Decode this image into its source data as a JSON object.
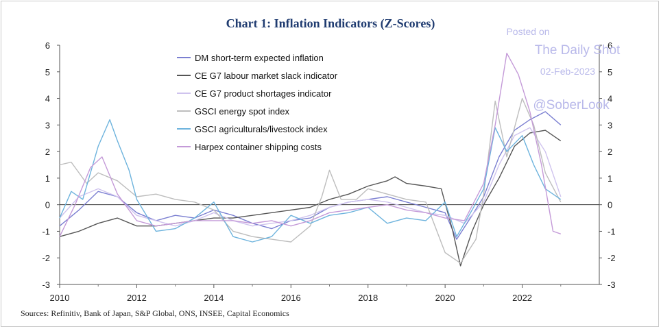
{
  "chart_data": {
    "type": "line",
    "title": "Chart 1: Inflation Indicators (Z-Scores)",
    "source": "Sources: Refinitiv, Bank of Japan, S&P Global, ONS, INSEE, Capital Economics",
    "xlim": [
      2010,
      2024
    ],
    "ylim": [
      -3,
      6
    ],
    "x_ticks": [
      "2010",
      "2012",
      "2014",
      "2016",
      "2018",
      "2020",
      "2022"
    ],
    "x_tick_values": [
      2010,
      2012,
      2014,
      2016,
      2018,
      2020,
      2022
    ],
    "y_ticks": [
      "-3",
      "-2",
      "-1",
      "0",
      "1",
      "2",
      "3",
      "4",
      "5",
      "6"
    ],
    "y_tick_values": [
      -3,
      -2,
      -1,
      0,
      1,
      2,
      3,
      4,
      5,
      6
    ],
    "legend_position": "top-left",
    "series": [
      {
        "name": "DM short-term expected inflation",
        "color": "#7b7fd1",
        "points": [
          [
            2010,
            -0.8
          ],
          [
            2010.5,
            -0.2
          ],
          [
            2011,
            0.5
          ],
          [
            2011.5,
            0.3
          ],
          [
            2012,
            -0.3
          ],
          [
            2012.5,
            -0.6
          ],
          [
            2013,
            -0.4
          ],
          [
            2013.5,
            -0.5
          ],
          [
            2014,
            -0.2
          ],
          [
            2014.5,
            -0.4
          ],
          [
            2015,
            -0.7
          ],
          [
            2015.5,
            -0.9
          ],
          [
            2016,
            -0.6
          ],
          [
            2016.5,
            -0.5
          ],
          [
            2017,
            -0.1
          ],
          [
            2017.5,
            0.1
          ],
          [
            2018,
            0.2
          ],
          [
            2018.5,
            0.3
          ],
          [
            2019,
            0.1
          ],
          [
            2019.5,
            -0.1
          ],
          [
            2020,
            -0.3
          ],
          [
            2020.3,
            -1.3
          ],
          [
            2020.7,
            -0.4
          ],
          [
            2021,
            0.3
          ],
          [
            2021.4,
            1.8
          ],
          [
            2021.8,
            2.8
          ],
          [
            2022.2,
            3.2
          ],
          [
            2022.6,
            3.5
          ],
          [
            2023,
            3.0
          ]
        ]
      },
      {
        "name": "CE G7 labour market slack indicator",
        "color": "#555555",
        "points": [
          [
            2010,
            -1.2
          ],
          [
            2010.5,
            -1.0
          ],
          [
            2011,
            -0.7
          ],
          [
            2011.5,
            -0.5
          ],
          [
            2012,
            -0.8
          ],
          [
            2012.5,
            -0.8
          ],
          [
            2013,
            -0.7
          ],
          [
            2013.5,
            -0.6
          ],
          [
            2014,
            -0.5
          ],
          [
            2014.5,
            -0.5
          ],
          [
            2015,
            -0.4
          ],
          [
            2015.5,
            -0.3
          ],
          [
            2016,
            -0.2
          ],
          [
            2016.5,
            -0.1
          ],
          [
            2017,
            0.2
          ],
          [
            2017.5,
            0.4
          ],
          [
            2018,
            0.7
          ],
          [
            2018.5,
            0.9
          ],
          [
            2018.7,
            1.05
          ],
          [
            2019,
            0.8
          ],
          [
            2019.5,
            0.7
          ],
          [
            2019.9,
            0.6
          ],
          [
            2020.2,
            -1.0
          ],
          [
            2020.4,
            -2.3
          ],
          [
            2020.7,
            -1.0
          ],
          [
            2021,
            0.0
          ],
          [
            2021.4,
            1.0
          ],
          [
            2021.8,
            2.2
          ],
          [
            2022.2,
            2.7
          ],
          [
            2022.6,
            2.8
          ],
          [
            2023,
            2.4
          ]
        ]
      },
      {
        "name": "CE G7 product shortages indicator",
        "color": "#cfc3ee",
        "points": [
          [
            2010,
            -0.5
          ],
          [
            2010.5,
            0.3
          ],
          [
            2011,
            0.6
          ],
          [
            2011.5,
            0.3
          ],
          [
            2012,
            -0.4
          ],
          [
            2012.5,
            -0.6
          ],
          [
            2013,
            -0.8
          ],
          [
            2013.5,
            -0.6
          ],
          [
            2014,
            -0.3
          ],
          [
            2014.5,
            -0.6
          ],
          [
            2015,
            -0.8
          ],
          [
            2015.5,
            -0.7
          ],
          [
            2016,
            -0.6
          ],
          [
            2016.5,
            -0.4
          ],
          [
            2017,
            -0.1
          ],
          [
            2017.5,
            0.1
          ],
          [
            2018,
            0.2
          ],
          [
            2018.5,
            0.1
          ],
          [
            2019,
            -0.1
          ],
          [
            2019.5,
            -0.3
          ],
          [
            2020,
            -0.4
          ],
          [
            2020.5,
            -0.7
          ],
          [
            2021,
            0.1
          ],
          [
            2021.4,
            1.5
          ],
          [
            2021.8,
            2.6
          ],
          [
            2022.2,
            2.9
          ],
          [
            2022.6,
            2.0
          ],
          [
            2023,
            0.3
          ]
        ]
      },
      {
        "name": "GSCI energy spot index",
        "color": "#bdbdbd",
        "points": [
          [
            2010,
            1.5
          ],
          [
            2010.3,
            1.6
          ],
          [
            2010.7,
            0.8
          ],
          [
            2011,
            1.2
          ],
          [
            2011.5,
            0.9
          ],
          [
            2012,
            0.3
          ],
          [
            2012.5,
            0.4
          ],
          [
            2013,
            0.2
          ],
          [
            2013.5,
            0.1
          ],
          [
            2014,
            -0.2
          ],
          [
            2014.5,
            -1.0
          ],
          [
            2015,
            -1.2
          ],
          [
            2015.5,
            -1.3
          ],
          [
            2016,
            -1.4
          ],
          [
            2016.5,
            -0.8
          ],
          [
            2016.8,
            0.3
          ],
          [
            2017,
            1.3
          ],
          [
            2017.3,
            0.2
          ],
          [
            2017.7,
            0.2
          ],
          [
            2018,
            0.6
          ],
          [
            2018.5,
            0.4
          ],
          [
            2019,
            0.2
          ],
          [
            2019.5,
            0.1
          ],
          [
            2020,
            -1.8
          ],
          [
            2020.4,
            -2.2
          ],
          [
            2020.8,
            -1.3
          ],
          [
            2021,
            0.4
          ],
          [
            2021.3,
            3.9
          ],
          [
            2021.6,
            1.8
          ],
          [
            2022,
            4.0
          ],
          [
            2022.3,
            3.0
          ],
          [
            2022.6,
            1.2
          ],
          [
            2023,
            0.1
          ]
        ]
      },
      {
        "name": "GSCI agriculturals/livestock index",
        "color": "#6db3dd",
        "points": [
          [
            2010,
            -0.5
          ],
          [
            2010.3,
            0.5
          ],
          [
            2010.6,
            0.2
          ],
          [
            2011,
            2.2
          ],
          [
            2011.3,
            3.2
          ],
          [
            2011.5,
            2.4
          ],
          [
            2011.8,
            1.3
          ],
          [
            2012,
            0.2
          ],
          [
            2012.5,
            -1.0
          ],
          [
            2013,
            -0.9
          ],
          [
            2013.5,
            -0.5
          ],
          [
            2014,
            0.1
          ],
          [
            2014.5,
            -1.2
          ],
          [
            2015,
            -1.4
          ],
          [
            2015.5,
            -1.2
          ],
          [
            2016,
            -0.4
          ],
          [
            2016.5,
            -0.7
          ],
          [
            2017,
            -0.4
          ],
          [
            2017.5,
            -0.3
          ],
          [
            2018,
            -0.1
          ],
          [
            2018.5,
            -0.7
          ],
          [
            2019,
            -0.5
          ],
          [
            2019.5,
            -0.6
          ],
          [
            2020,
            0.1
          ],
          [
            2020.3,
            -1.2
          ],
          [
            2020.7,
            -0.2
          ],
          [
            2021,
            0.6
          ],
          [
            2021.3,
            2.9
          ],
          [
            2021.6,
            2.0
          ],
          [
            2022,
            2.6
          ],
          [
            2022.3,
            1.5
          ],
          [
            2022.6,
            0.6
          ],
          [
            2023,
            0.2
          ]
        ]
      },
      {
        "name": "Harpex container shipping costs",
        "color": "#c49ad8",
        "points": [
          [
            2010,
            -1.2
          ],
          [
            2010.4,
            0.0
          ],
          [
            2010.8,
            1.4
          ],
          [
            2011.1,
            1.8
          ],
          [
            2011.5,
            0.4
          ],
          [
            2012,
            -0.6
          ],
          [
            2012.5,
            -0.8
          ],
          [
            2013,
            -0.7
          ],
          [
            2013.5,
            -0.6
          ],
          [
            2014,
            -0.6
          ],
          [
            2014.5,
            -0.6
          ],
          [
            2015,
            -0.7
          ],
          [
            2015.5,
            -0.6
          ],
          [
            2016,
            -0.8
          ],
          [
            2016.5,
            -0.6
          ],
          [
            2017,
            -0.3
          ],
          [
            2017.5,
            -0.2
          ],
          [
            2018,
            -0.1
          ],
          [
            2018.5,
            0.0
          ],
          [
            2019,
            -0.2
          ],
          [
            2019.5,
            -0.3
          ],
          [
            2020,
            -0.5
          ],
          [
            2020.5,
            -0.6
          ],
          [
            2021,
            0.8
          ],
          [
            2021.3,
            3.0
          ],
          [
            2021.6,
            5.7
          ],
          [
            2021.9,
            4.9
          ],
          [
            2022.2,
            3.5
          ],
          [
            2022.5,
            1.5
          ],
          [
            2022.8,
            -1.0
          ],
          [
            2023,
            -1.1
          ]
        ]
      }
    ]
  },
  "watermark": {
    "line1": "Posted on",
    "line2": "The Daily Shot",
    "line3": "02-Feb-2023",
    "line4": "@SoberLook"
  }
}
